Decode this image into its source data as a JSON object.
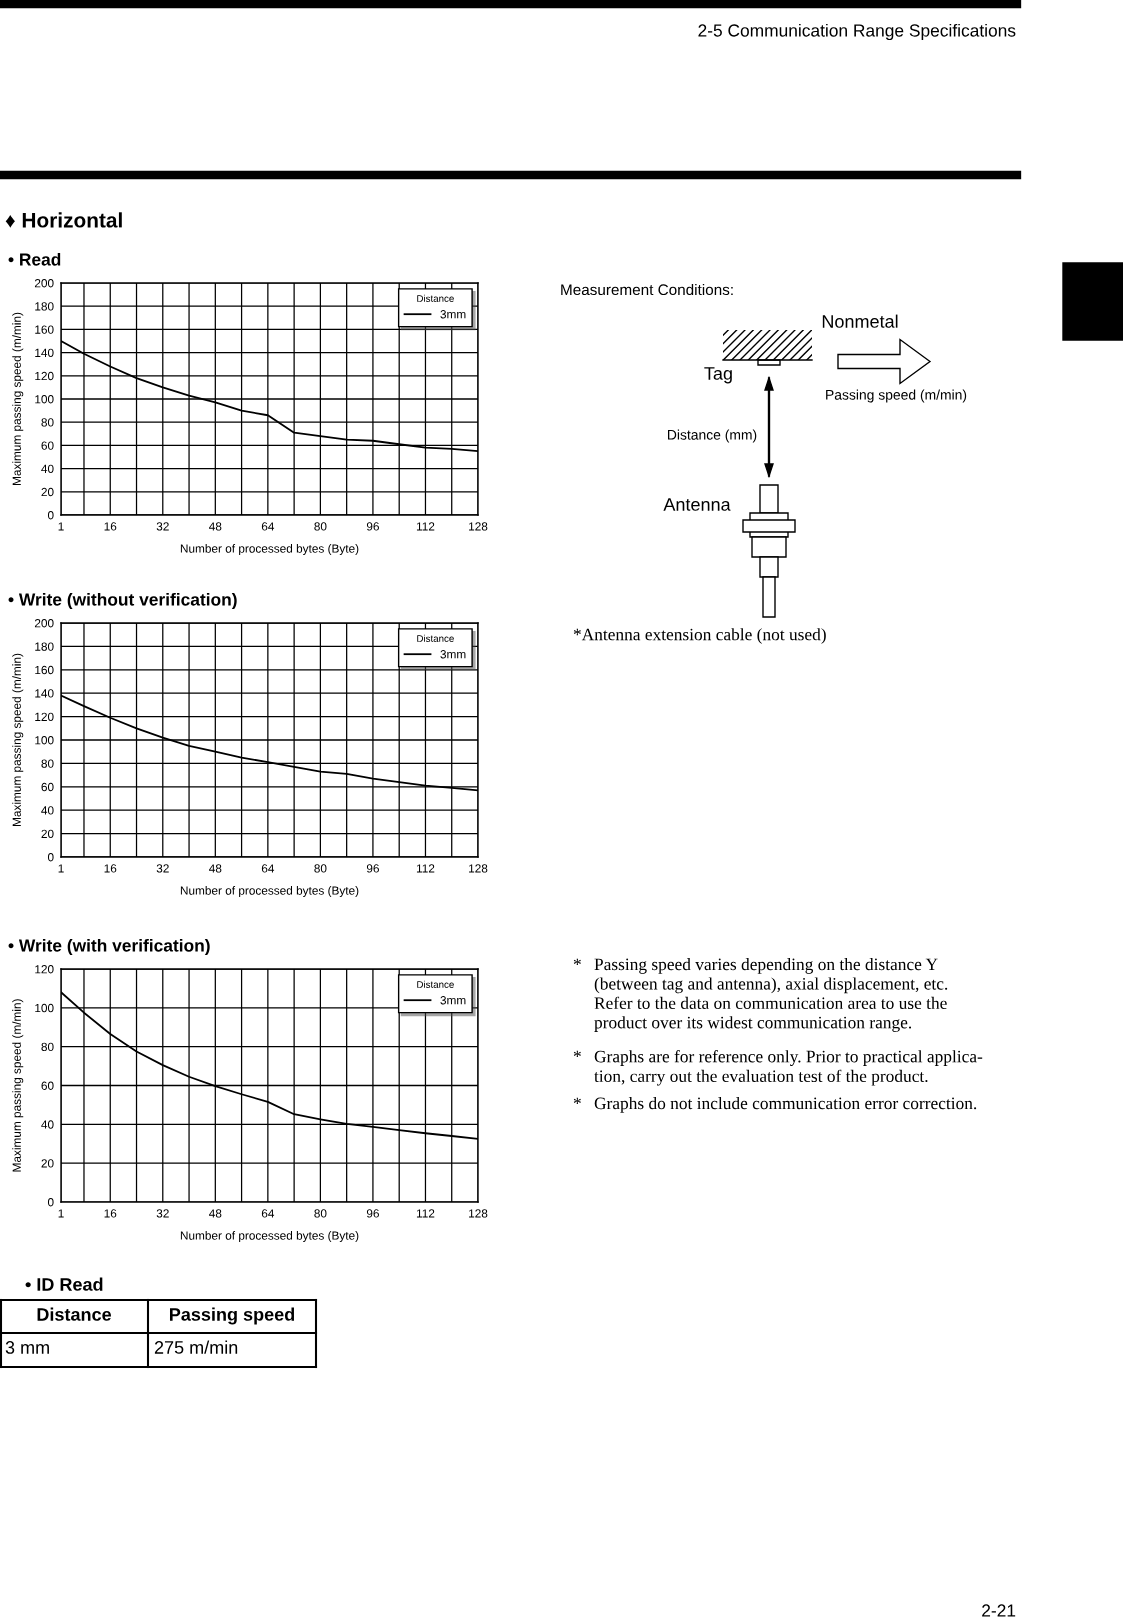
{
  "chart_data": [
    {
      "type": "line",
      "title": "• Read",
      "xlabel": "Number of processed bytes (Byte)",
      "ylabel": "Maximum passing speed (m/min)",
      "legend_title": "Distance",
      "legend": "top right",
      "grid": true,
      "x": [
        1,
        8,
        16,
        24,
        32,
        40,
        48,
        56,
        64,
        72,
        80,
        88,
        96,
        104,
        112,
        120,
        128
      ],
      "series": [
        {
          "name": "3mm",
          "color": "#000000",
          "values": [
            150,
            139,
            128,
            118,
            110,
            103,
            97,
            90,
            86,
            71,
            68,
            65,
            64,
            61,
            58,
            57,
            55
          ]
        }
      ],
      "xlim": [
        1,
        128
      ],
      "xticks": [
        1,
        {
          "value": 8,
          "label": null
        },
        16,
        {
          "value": 24,
          "label": null
        },
        32,
        {
          "value": 40,
          "label": null
        },
        48,
        {
          "value": 56,
          "label": null
        },
        64,
        {
          "value": 72,
          "label": null
        },
        80,
        {
          "value": 88,
          "label": null
        },
        96,
        {
          "value": 104,
          "label": null
        },
        112,
        {
          "value": 120,
          "label": null
        },
        128
      ],
      "ylim": [
        0,
        200
      ],
      "yticks": [
        0,
        20,
        40,
        60,
        80,
        100,
        120,
        140,
        160,
        180,
        200
      ]
    },
    {
      "type": "line",
      "title": "• Write (without verification)",
      "xlabel": "Number of processed bytes (Byte)",
      "ylabel": "Maximum passing speed (m/min)",
      "legend_title": "Distance",
      "legend": "top right",
      "grid": true,
      "x": [
        1,
        8,
        16,
        24,
        32,
        40,
        48,
        56,
        64,
        72,
        80,
        88,
        96,
        104,
        112,
        120,
        128
      ],
      "series": [
        {
          "name": "3mm",
          "color": "#000000",
          "values": [
            138,
            129,
            119,
            110,
            102,
            95,
            90,
            85,
            81,
            77,
            73,
            71,
            67,
            64,
            61,
            59,
            57
          ]
        }
      ],
      "xlim": [
        1,
        128
      ],
      "xticks": [
        1,
        {
          "value": 8,
          "label": null
        },
        16,
        {
          "value": 24,
          "label": null
        },
        32,
        {
          "value": 40,
          "label": null
        },
        48,
        {
          "value": 56,
          "label": null
        },
        64,
        {
          "value": 72,
          "label": null
        },
        80,
        {
          "value": 88,
          "label": null
        },
        96,
        {
          "value": 104,
          "label": null
        },
        112,
        {
          "value": 120,
          "label": null
        },
        128
      ],
      "ylim": [
        0,
        200
      ],
      "yticks": [
        0,
        20,
        40,
        60,
        80,
        100,
        120,
        140,
        160,
        180,
        200
      ]
    },
    {
      "type": "line",
      "title": "• Write (with verification)",
      "xlabel": "Number of processed bytes (Byte)",
      "ylabel": "Maximum passing speed (m/min)",
      "legend_title": "Distance",
      "legend": "top right",
      "grid": true,
      "x": [
        1,
        8,
        16,
        24,
        32,
        40,
        48,
        56,
        64,
        72,
        80,
        88,
        96,
        104,
        112,
        120,
        128
      ],
      "series": [
        {
          "name": "3mm",
          "color": "#000000",
          "values": [
            108,
            97.5,
            86.5,
            77.5,
            70.5,
            64.5,
            59.7,
            55.5,
            51.6,
            45.2,
            42.6,
            40.2,
            38.7,
            37,
            35.4,
            34,
            32.5
          ]
        }
      ],
      "xlim": [
        1,
        128
      ],
      "xticks": [
        1,
        {
          "value": 8,
          "label": null
        },
        16,
        {
          "value": 24,
          "label": null
        },
        32,
        {
          "value": 40,
          "label": null
        },
        48,
        {
          "value": 56,
          "label": null
        },
        64,
        {
          "value": 72,
          "label": null
        },
        80,
        {
          "value": 88,
          "label": null
        },
        96,
        {
          "value": 104,
          "label": null
        },
        112,
        {
          "value": 120,
          "label": null
        },
        128
      ],
      "ylim": [
        0,
        120
      ],
      "yticks": [
        0,
        20,
        40,
        60,
        80,
        100,
        120
      ]
    },
    {
      "type": "other",
      "title": "Measurement Conditions:",
      "annotations": [
        "2-5 Communication Range Specifications",
        "♦ Horizontal",
        "Nonmetal",
        "Tag",
        "Passing speed (m/min)",
        "Distance (mm)",
        "Antenna",
        "*Antenna extension cable (not used)",
        "* Passing speed varies depending on the distance Y\n(between tag and antenna), axial displacement, etc.\nRefer to the data on communication area to use the\nproduct over its widest communication range.",
        "* Graphs are for reference only. Prior to practical applica-\ntion, carry out the evaluation test of the product.",
        "* Graphs do not include communication error correction.",
        "• ID Read",
        "Distance",
        "Passing speed",
        "3 mm",
        "275 m/min",
        "2-21"
      ]
    }
  ]
}
